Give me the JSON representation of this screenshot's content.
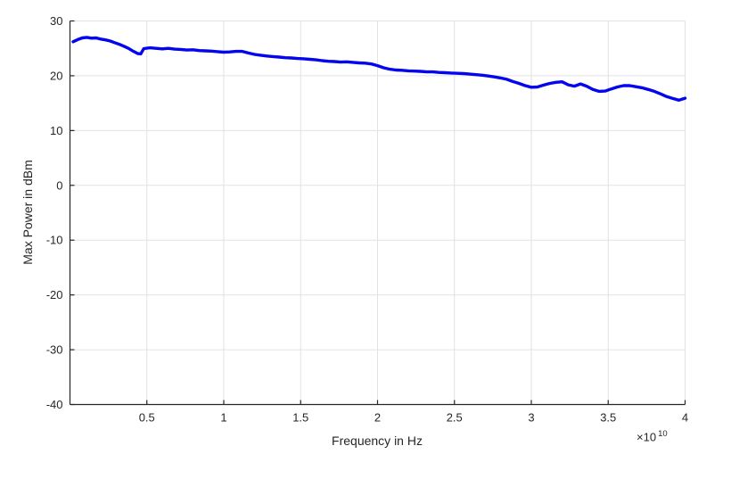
{
  "chart_data": {
    "type": "line",
    "title": "",
    "xlabel": "Frequency in Hz",
    "ylabel": "Max Power in dBm",
    "x_multiplier": {
      "base": "×10",
      "exponent": "10"
    },
    "x_unit": "1e10 Hz",
    "xlim": [
      0,
      4
    ],
    "ylim": [
      -40,
      30
    ],
    "x_ticks": [
      0.5,
      1,
      1.5,
      2,
      2.5,
      3,
      3.5,
      4
    ],
    "x_tick_labels": [
      "0.5",
      "1",
      "1.5",
      "2",
      "2.5",
      "3",
      "3.5",
      "4"
    ],
    "y_ticks": [
      -40,
      -30,
      -20,
      -10,
      0,
      10,
      20,
      30
    ],
    "y_tick_labels": [
      "-40",
      "-30",
      "-20",
      "-10",
      "0",
      "10",
      "20",
      "30"
    ],
    "grid": true,
    "legend": "none",
    "colors": {
      "line": "#0404ed",
      "axis": "#262626",
      "grid": "#e2e2e2",
      "background": "#ffffff"
    },
    "line_width": 3.4,
    "series": [
      {
        "name": "max-power-vs-frequency",
        "x": [
          0.02,
          0.05,
          0.08,
          0.11,
          0.14,
          0.17,
          0.2,
          0.23,
          0.26,
          0.29,
          0.32,
          0.35,
          0.38,
          0.41,
          0.44,
          0.46,
          0.48,
          0.52,
          0.56,
          0.6,
          0.64,
          0.68,
          0.72,
          0.76,
          0.8,
          0.84,
          0.88,
          0.92,
          0.96,
          1.0,
          1.04,
          1.08,
          1.12,
          1.16,
          1.2,
          1.24,
          1.28,
          1.32,
          1.36,
          1.4,
          1.44,
          1.48,
          1.52,
          1.56,
          1.6,
          1.64,
          1.68,
          1.72,
          1.76,
          1.8,
          1.84,
          1.88,
          1.92,
          1.96,
          2.0,
          2.04,
          2.08,
          2.12,
          2.16,
          2.2,
          2.24,
          2.28,
          2.32,
          2.36,
          2.4,
          2.44,
          2.48,
          2.52,
          2.56,
          2.6,
          2.64,
          2.68,
          2.72,
          2.76,
          2.8,
          2.84,
          2.88,
          2.92,
          2.96,
          3.0,
          3.04,
          3.08,
          3.12,
          3.16,
          3.2,
          3.24,
          3.28,
          3.32,
          3.36,
          3.4,
          3.44,
          3.48,
          3.52,
          3.56,
          3.6,
          3.64,
          3.68,
          3.72,
          3.76,
          3.8,
          3.84,
          3.88,
          3.92,
          3.96,
          4.0
        ],
        "y": [
          26.2,
          26.6,
          26.9,
          27.0,
          26.85,
          26.9,
          26.7,
          26.55,
          26.35,
          26.05,
          25.75,
          25.4,
          25.0,
          24.5,
          24.05,
          24.0,
          24.95,
          25.1,
          25.0,
          24.9,
          25.0,
          24.85,
          24.8,
          24.7,
          24.75,
          24.6,
          24.55,
          24.5,
          24.4,
          24.3,
          24.35,
          24.45,
          24.45,
          24.15,
          23.9,
          23.75,
          23.6,
          23.5,
          23.4,
          23.3,
          23.25,
          23.15,
          23.1,
          23.0,
          22.9,
          22.75,
          22.65,
          22.6,
          22.5,
          22.55,
          22.45,
          22.35,
          22.3,
          22.15,
          21.85,
          21.45,
          21.2,
          21.05,
          21.0,
          20.9,
          20.85,
          20.8,
          20.7,
          20.7,
          20.6,
          20.55,
          20.5,
          20.45,
          20.4,
          20.3,
          20.2,
          20.1,
          19.95,
          19.8,
          19.6,
          19.35,
          18.95,
          18.6,
          18.2,
          17.9,
          17.95,
          18.3,
          18.6,
          18.8,
          18.9,
          18.35,
          18.1,
          18.5,
          18.1,
          17.5,
          17.15,
          17.2,
          17.6,
          17.95,
          18.2,
          18.2,
          18.0,
          17.8,
          17.5,
          17.15,
          16.7,
          16.2,
          15.85,
          15.55,
          15.9
        ]
      }
    ]
  }
}
